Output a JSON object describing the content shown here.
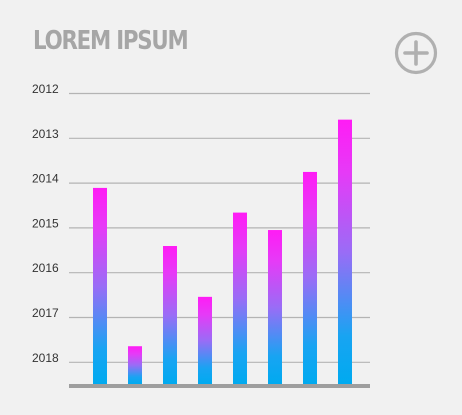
{
  "header": {
    "title": "LOREM IPSUM",
    "add_icon": "plus-circle-icon"
  },
  "colors": {
    "background": "#f1f1f1",
    "title": "#a6a6a6",
    "gridline": "#b4b4b4",
    "baseline": "#9e9e9e",
    "icon": "#b0b0b0",
    "bar_top": "#ff1cf5",
    "bar_bottom": "#00aaf0"
  },
  "chart_data": {
    "type": "bar",
    "title": "",
    "xlabel": "",
    "ylabel": "",
    "y_tick_labels": [
      "2012",
      "2013",
      "2014",
      "2015",
      "2016",
      "2017",
      "2018"
    ],
    "y_tick_order": "top-to-bottom",
    "categories": [
      "",
      "",
      "",
      "",
      "",
      "",
      "",
      ""
    ],
    "values": [
      0.675,
      0.13,
      0.475,
      0.3,
      0.59,
      0.53,
      0.73,
      0.91
    ],
    "value_scale": "fraction of plotted height (2012 gridline = 0.74 of full height)",
    "ylim": [
      0,
      1
    ],
    "grid": true,
    "legend": "none"
  }
}
